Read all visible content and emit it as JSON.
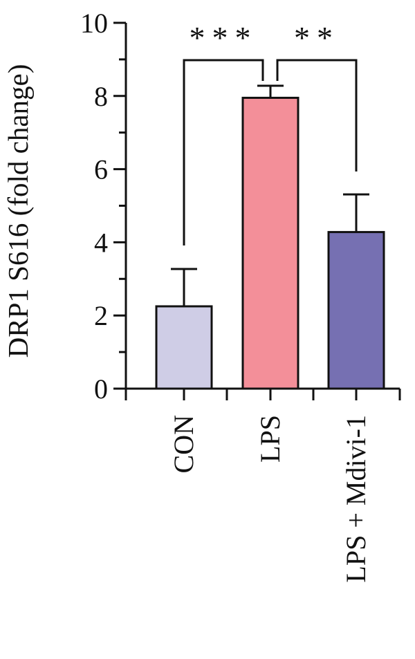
{
  "chart_data": {
    "type": "bar",
    "title": "",
    "xlabel": "",
    "ylabel": "DRP1 S616 (fold change)",
    "ylim": [
      0,
      10
    ],
    "yticks": [
      0,
      2,
      4,
      6,
      8,
      10
    ],
    "categories": [
      "CON",
      "LPS",
      "LPS + Mdivi-1"
    ],
    "values": [
      2.25,
      7.95,
      4.28
    ],
    "error_upper": [
      1.02,
      0.33,
      1.03
    ],
    "bar_colors": [
      "#cfcde6",
      "#f38f99",
      "#7670b2"
    ],
    "edge_color": "#111111",
    "significance": [
      {
        "from": "CON",
        "to": "LPS",
        "label": "***"
      },
      {
        "from": "LPS",
        "to": "LPS + Mdivi-1",
        "label": "**"
      }
    ],
    "grid": false,
    "legend": "none"
  }
}
